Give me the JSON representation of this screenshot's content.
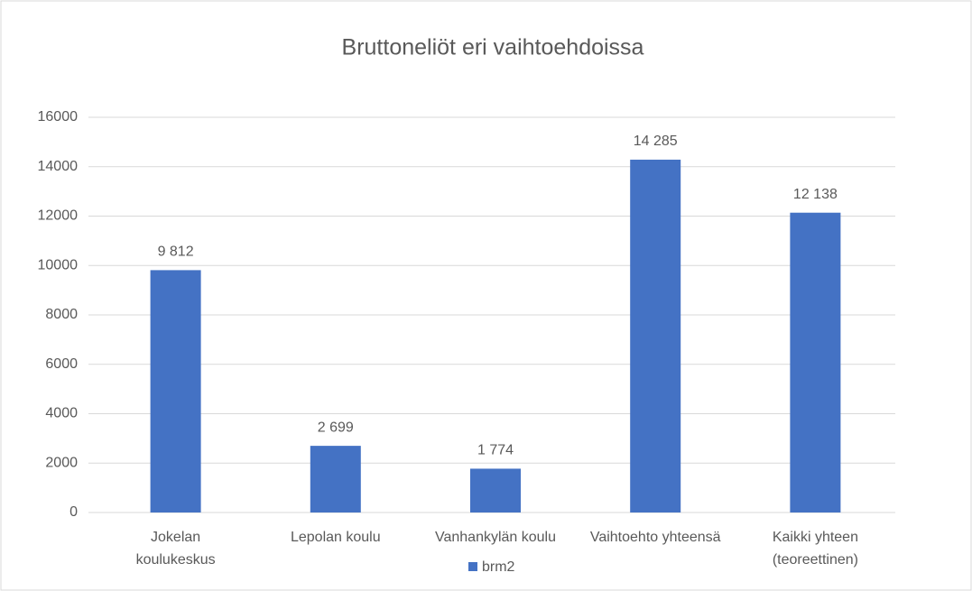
{
  "chart_data": {
    "type": "bar",
    "title": "Bruttoneliöt eri vaihtoehdoissa",
    "categories": [
      "Jokelan koulukeskus",
      "Lepolan koulu",
      "Vanhankylän koulu",
      "Vaihtoehto yhteensä",
      "Kaikki yhteen (teoreettinen)"
    ],
    "series": [
      {
        "name": "brm2",
        "color": "#4472c4",
        "values": [
          9812,
          2699,
          1774,
          14285,
          12138
        ],
        "value_labels": [
          "9 812",
          "2 699",
          "1 774",
          "14 285",
          "12 138"
        ]
      }
    ],
    "ylim": [
      0,
      16000
    ],
    "yticks": [
      0,
      2000,
      4000,
      6000,
      8000,
      10000,
      12000,
      14000,
      16000
    ],
    "grid": true,
    "legend": "bottom"
  }
}
